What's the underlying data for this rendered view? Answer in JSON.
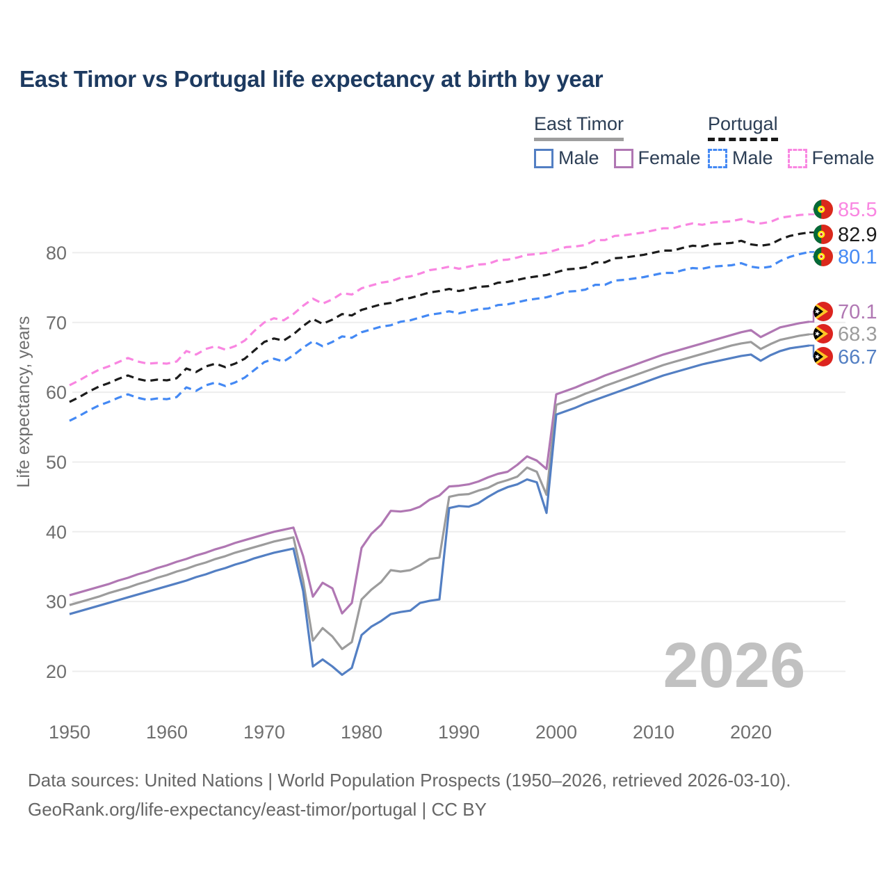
{
  "title": "East Timor vs Portugal life expectancy at birth by year",
  "watermark": "2026",
  "legend": {
    "groups": [
      {
        "label": "East Timor",
        "line_style": "solid",
        "items": [
          {
            "label": "Male",
            "color": "#537fc3"
          },
          {
            "label": "Female",
            "color": "#b077b3"
          }
        ]
      },
      {
        "label": "Portugal",
        "line_style": "dashed",
        "items": [
          {
            "label": "Male",
            "color": "#4489f4"
          },
          {
            "label": "Female",
            "color": "#f986e1"
          }
        ]
      }
    ]
  },
  "footer": {
    "line1": "Data sources: United Nations | World Population Prospects (1950–2026, retrieved 2026-03-10).",
    "line2": "GeoRank.org/life-expectancy/east-timor/portugal | CC BY"
  },
  "chart_data": {
    "type": "line",
    "title": "East Timor vs Portugal life expectancy at birth by year",
    "xlabel": "",
    "ylabel": "Life expectancy, years",
    "x_start": 1950,
    "x_end": 2026,
    "x_ticks": [
      1950,
      1960,
      1970,
      1980,
      1990,
      2000,
      2010,
      2020
    ],
    "y_ticks": [
      20,
      30,
      40,
      50,
      60,
      70,
      80
    ],
    "ylim": [
      17,
      88
    ],
    "grid": true,
    "legend_position": "top-right",
    "series": [
      {
        "name": "Portugal Female",
        "country": "Portugal",
        "sex": "Female",
        "color": "#f986e1",
        "dash": true,
        "end_label": "85.5",
        "flag": "portugal",
        "values": [
          61.0,
          61.7,
          62.5,
          63.2,
          63.7,
          64.3,
          64.9,
          64.4,
          64.1,
          64.2,
          64.1,
          64.4,
          65.9,
          65.4,
          66.2,
          66.6,
          66.1,
          66.6,
          67.4,
          68.8,
          70.0,
          70.6,
          70.3,
          71.2,
          72.4,
          73.4,
          72.7,
          73.3,
          74.2,
          74.0,
          74.9,
          75.3,
          75.7,
          75.9,
          76.4,
          76.6,
          77.0,
          77.5,
          77.7,
          78.0,
          77.7,
          78.0,
          78.3,
          78.4,
          78.9,
          79.0,
          79.3,
          79.7,
          79.8,
          80.0,
          80.4,
          80.8,
          80.9,
          81.1,
          81.8,
          81.8,
          82.4,
          82.5,
          82.7,
          82.9,
          83.2,
          83.5,
          83.5,
          83.9,
          84.2,
          84.0,
          84.3,
          84.4,
          84.5,
          84.8,
          84.4,
          84.2,
          84.4,
          85.0,
          85.2,
          85.4,
          85.5
        ]
      },
      {
        "name": "Portugal Both sexes",
        "country": "Portugal",
        "sex": "Both",
        "color": "#1c1c1c",
        "dash": true,
        "end_label": "82.9",
        "flag": "portugal",
        "values": [
          58.6,
          59.3,
          60.1,
          60.8,
          61.3,
          61.9,
          62.4,
          61.9,
          61.6,
          61.8,
          61.7,
          62.0,
          63.4,
          62.9,
          63.7,
          64.1,
          63.6,
          64.1,
          64.8,
          66.0,
          67.2,
          67.7,
          67.4,
          68.3,
          69.5,
          70.5,
          69.8,
          70.4,
          71.2,
          71.0,
          71.8,
          72.2,
          72.6,
          72.8,
          73.3,
          73.5,
          73.9,
          74.3,
          74.5,
          74.8,
          74.5,
          74.8,
          75.1,
          75.2,
          75.7,
          75.8,
          76.1,
          76.4,
          76.6,
          76.8,
          77.2,
          77.6,
          77.7,
          77.9,
          78.6,
          78.6,
          79.2,
          79.3,
          79.5,
          79.7,
          80.0,
          80.3,
          80.3,
          80.7,
          81.0,
          80.9,
          81.2,
          81.3,
          81.4,
          81.7,
          81.2,
          81.0,
          81.2,
          81.9,
          82.4,
          82.7,
          82.9
        ]
      },
      {
        "name": "Portugal Male",
        "country": "Portugal",
        "sex": "Male",
        "color": "#4489f4",
        "dash": true,
        "end_label": "80.1",
        "flag": "portugal",
        "values": [
          55.9,
          56.6,
          57.4,
          58.1,
          58.6,
          59.2,
          59.7,
          59.2,
          58.9,
          59.1,
          59.0,
          59.3,
          60.7,
          60.2,
          61.0,
          61.4,
          60.9,
          61.4,
          62.1,
          63.2,
          64.3,
          64.8,
          64.4,
          65.3,
          66.4,
          67.3,
          66.6,
          67.2,
          68.0,
          67.8,
          68.6,
          69.0,
          69.4,
          69.6,
          70.1,
          70.3,
          70.7,
          71.1,
          71.3,
          71.6,
          71.3,
          71.6,
          71.9,
          72.0,
          72.5,
          72.6,
          72.9,
          73.2,
          73.4,
          73.6,
          74.0,
          74.4,
          74.5,
          74.7,
          75.4,
          75.4,
          76.0,
          76.1,
          76.3,
          76.5,
          76.8,
          77.1,
          77.1,
          77.5,
          77.8,
          77.7,
          78.0,
          78.1,
          78.2,
          78.5,
          78.0,
          77.8,
          78.0,
          78.8,
          79.4,
          79.8,
          80.1
        ]
      },
      {
        "name": "East Timor Female",
        "country": "East Timor",
        "sex": "Female",
        "color": "#b077b3",
        "dash": false,
        "end_label": "70.1",
        "flag": "east-timor",
        "values": [
          30.9,
          31.3,
          31.7,
          32.1,
          32.5,
          33.0,
          33.4,
          33.9,
          34.3,
          34.8,
          35.2,
          35.7,
          36.1,
          36.6,
          37.0,
          37.5,
          37.9,
          38.4,
          38.8,
          39.2,
          39.6,
          40.0,
          40.3,
          40.6,
          36.5,
          30.7,
          32.7,
          31.9,
          28.3,
          29.8,
          37.7,
          39.7,
          41.0,
          43.0,
          42.9,
          43.1,
          43.6,
          44.6,
          45.2,
          46.5,
          46.6,
          46.8,
          47.2,
          47.8,
          48.3,
          48.6,
          49.6,
          50.8,
          50.2,
          49.0,
          59.7,
          60.2,
          60.7,
          61.3,
          61.8,
          62.4,
          62.9,
          63.4,
          63.9,
          64.4,
          64.9,
          65.4,
          65.8,
          66.2,
          66.6,
          67.0,
          67.4,
          67.8,
          68.2,
          68.6,
          68.9,
          67.9,
          68.6,
          69.3,
          69.6,
          69.9,
          70.1
        ]
      },
      {
        "name": "East Timor Both sexes",
        "country": "East Timor",
        "sex": "Both",
        "color": "#9c9c9c",
        "dash": false,
        "end_label": "68.3",
        "flag": "east-timor",
        "values": [
          29.5,
          29.9,
          30.3,
          30.7,
          31.2,
          31.6,
          32.0,
          32.5,
          32.9,
          33.4,
          33.8,
          34.3,
          34.7,
          35.2,
          35.6,
          36.1,
          36.5,
          37.0,
          37.4,
          37.8,
          38.2,
          38.6,
          38.9,
          39.2,
          33.0,
          24.4,
          26.2,
          25.0,
          23.2,
          24.2,
          30.3,
          31.7,
          32.8,
          34.5,
          34.3,
          34.5,
          35.2,
          36.1,
          36.3,
          45.0,
          45.3,
          45.4,
          45.9,
          46.3,
          47.0,
          47.4,
          47.9,
          49.2,
          48.6,
          45.3,
          58.2,
          58.7,
          59.2,
          59.8,
          60.3,
          60.9,
          61.4,
          61.9,
          62.4,
          62.9,
          63.4,
          63.9,
          64.3,
          64.7,
          65.1,
          65.5,
          65.9,
          66.3,
          66.7,
          67.0,
          67.2,
          66.2,
          66.9,
          67.5,
          67.8,
          68.1,
          68.3
        ]
      },
      {
        "name": "East Timor Male",
        "country": "East Timor",
        "sex": "Male",
        "color": "#537fc3",
        "dash": false,
        "end_label": "66.7",
        "flag": "east-timor",
        "values": [
          28.2,
          28.6,
          29.0,
          29.4,
          29.8,
          30.2,
          30.6,
          31.0,
          31.4,
          31.8,
          32.2,
          32.6,
          33.0,
          33.5,
          33.9,
          34.4,
          34.8,
          35.3,
          35.7,
          36.2,
          36.6,
          37.0,
          37.3,
          37.6,
          31.5,
          20.7,
          21.7,
          20.7,
          19.5,
          20.5,
          25.2,
          26.4,
          27.2,
          28.2,
          28.5,
          28.7,
          29.8,
          30.1,
          30.3,
          43.4,
          43.7,
          43.6,
          44.1,
          45.0,
          45.8,
          46.4,
          46.8,
          47.5,
          47.1,
          42.7,
          56.8,
          57.3,
          57.8,
          58.4,
          58.9,
          59.4,
          59.9,
          60.4,
          60.9,
          61.4,
          61.9,
          62.4,
          62.8,
          63.2,
          63.6,
          64.0,
          64.3,
          64.6,
          64.9,
          65.2,
          65.4,
          64.5,
          65.3,
          65.9,
          66.3,
          66.5,
          66.7
        ]
      }
    ]
  }
}
